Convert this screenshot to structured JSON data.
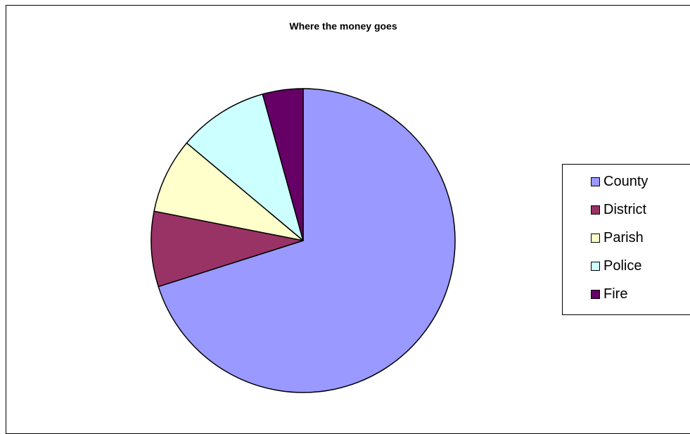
{
  "chart_data": {
    "type": "pie",
    "title": "Where the money goes",
    "start_angle_deg": 0,
    "direction": "clockwise",
    "legend_position": "right",
    "slices": [
      {
        "label": "County",
        "value": 70.1,
        "color": "#9999FF"
      },
      {
        "label": "District",
        "value": 8.0,
        "color": "#993366"
      },
      {
        "label": "Parish",
        "value": 8.0,
        "color": "#FFFFCC"
      },
      {
        "label": "Police",
        "value": 9.6,
        "color": "#CCFFFF"
      },
      {
        "label": "Fire",
        "value": 4.3,
        "color": "#660066"
      }
    ]
  }
}
